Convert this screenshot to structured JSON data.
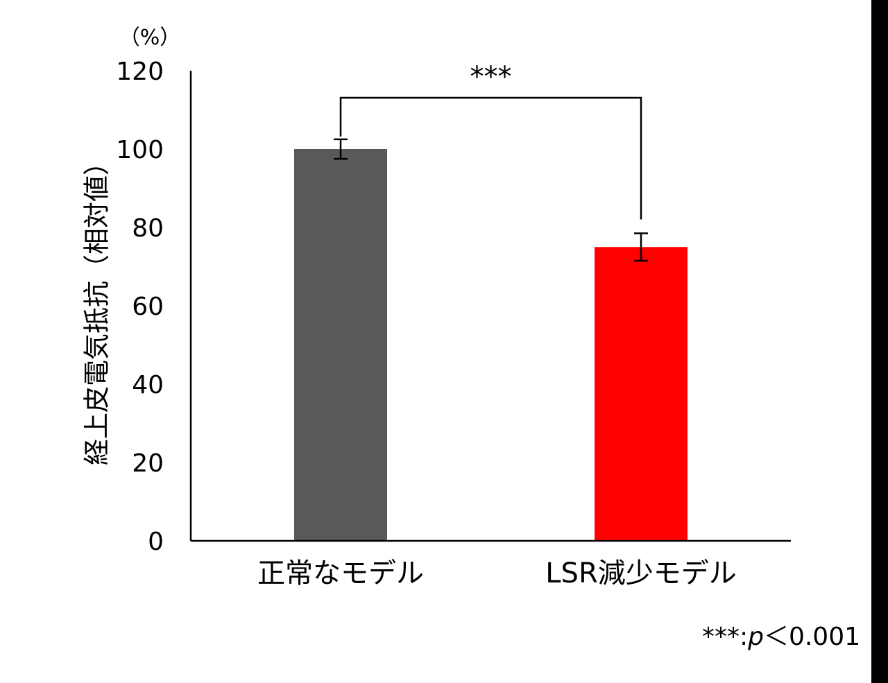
{
  "chart_data": {
    "type": "bar",
    "categories": [
      "正常なモデル",
      "LSR減少モデル"
    ],
    "values": [
      100,
      75
    ],
    "error": [
      2.5,
      3.5
    ],
    "colors": [
      "#595959",
      "#ff0000"
    ],
    "ylabel": "経上皮電気抵抗（相対値）",
    "yunit": "（%）",
    "ylim": [
      0,
      120
    ],
    "yticks": [
      0,
      20,
      40,
      60,
      80,
      100,
      120
    ],
    "significance": {
      "between": [
        0,
        1
      ],
      "label": "***"
    },
    "footnote": {
      "stars": "***",
      "colon": ":",
      "p": "p",
      "rest": "＜0.001"
    },
    "grid": false
  }
}
